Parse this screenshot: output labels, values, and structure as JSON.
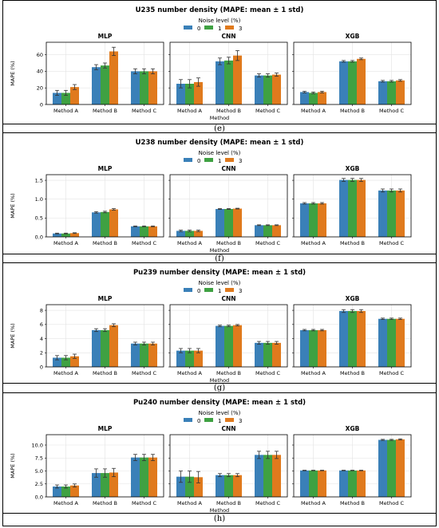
{
  "colors": {
    "noise_0": "#3a80b8",
    "noise_1": "#3fa142",
    "noise_3": "#e07a1d"
  },
  "legend": {
    "title": "Noise level (%)",
    "entries": [
      "0",
      "1",
      "3"
    ]
  },
  "figures": [
    {
      "caption": "(e)",
      "title": "U235 number density (MAPE: mean ± 1 std)",
      "ylabel": "MAPE (%)",
      "xlabel": "Method",
      "categories": [
        "Method A",
        "Method B",
        "Method C"
      ],
      "ylim": [
        0,
        75
      ],
      "yticks": [
        "0",
        "20",
        "40",
        "60"
      ],
      "ytick_values": [
        0,
        20,
        40,
        60
      ],
      "panels": [
        {
          "name": "MLP",
          "series": [
            {
              "name": "0",
              "values": [
                14,
                45,
                40
              ],
              "err": [
                3,
                3,
                3
              ]
            },
            {
              "name": "1",
              "values": [
                14,
                47,
                40
              ],
              "err": [
                3,
                3,
                3
              ]
            },
            {
              "name": "3",
              "values": [
                21,
                64,
                40
              ],
              "err": [
                3,
                5,
                3
              ]
            }
          ]
        },
        {
          "name": "CNN",
          "series": [
            {
              "name": "0",
              "values": [
                25,
                52,
                35
              ],
              "err": [
                5,
                4,
                2
              ]
            },
            {
              "name": "1",
              "values": [
                25,
                53,
                35
              ],
              "err": [
                5,
                4,
                2
              ]
            },
            {
              "name": "3",
              "values": [
                27,
                59,
                36
              ],
              "err": [
                5,
                6,
                2
              ]
            }
          ]
        },
        {
          "name": "XGB",
          "series": [
            {
              "name": "0",
              "values": [
                15,
                52,
                28
              ],
              "err": [
                1,
                1,
                1
              ]
            },
            {
              "name": "1",
              "values": [
                14,
                52,
                28
              ],
              "err": [
                1,
                1,
                1
              ]
            },
            {
              "name": "3",
              "values": [
                15,
                55,
                29
              ],
              "err": [
                1,
                1,
                1
              ]
            }
          ]
        }
      ]
    },
    {
      "caption": "(f)",
      "title": "U238 number density (MAPE: mean ± 1 std)",
      "ylabel": "MAPE (%)",
      "xlabel": "Method",
      "categories": [
        "Method A",
        "Method B",
        "Method C"
      ],
      "ylim": [
        0,
        1.65
      ],
      "yticks": [
        "0.0",
        "0.5",
        "1.0",
        "1.5"
      ],
      "ytick_values": [
        0,
        0.5,
        1.0,
        1.5
      ],
      "panels": [
        {
          "name": "MLP",
          "series": [
            {
              "name": "0",
              "values": [
                0.09,
                0.65,
                0.28
              ],
              "err": [
                0.01,
                0.02,
                0.01
              ]
            },
            {
              "name": "1",
              "values": [
                0.09,
                0.66,
                0.28
              ],
              "err": [
                0.01,
                0.02,
                0.01
              ]
            },
            {
              "name": "3",
              "values": [
                0.1,
                0.73,
                0.28
              ],
              "err": [
                0.01,
                0.02,
                0.01
              ]
            }
          ]
        },
        {
          "name": "CNN",
          "series": [
            {
              "name": "0",
              "values": [
                0.16,
                0.74,
                0.31
              ],
              "err": [
                0.02,
                0.01,
                0.01
              ]
            },
            {
              "name": "1",
              "values": [
                0.16,
                0.74,
                0.31
              ],
              "err": [
                0.02,
                0.01,
                0.01
              ]
            },
            {
              "name": "3",
              "values": [
                0.16,
                0.75,
                0.31
              ],
              "err": [
                0.02,
                0.01,
                0.01
              ]
            }
          ]
        },
        {
          "name": "XGB",
          "series": [
            {
              "name": "0",
              "values": [
                0.89,
                1.51,
                1.23
              ],
              "err": [
                0.02,
                0.04,
                0.04
              ]
            },
            {
              "name": "1",
              "values": [
                0.89,
                1.51,
                1.23
              ],
              "err": [
                0.02,
                0.04,
                0.04
              ]
            },
            {
              "name": "3",
              "values": [
                0.89,
                1.51,
                1.23
              ],
              "err": [
                0.02,
                0.04,
                0.04
              ]
            }
          ]
        }
      ]
    },
    {
      "caption": "(g)",
      "title": "Pu239 number density (MAPE: mean ± 1 std)",
      "ylabel": "MAPE (%)",
      "xlabel": "Method",
      "categories": [
        "Method A",
        "Method B",
        "Method C"
      ],
      "ylim": [
        0,
        8.8
      ],
      "yticks": [
        "0",
        "2",
        "4",
        "6",
        "8"
      ],
      "ytick_values": [
        0,
        2,
        4,
        6,
        8
      ],
      "panels": [
        {
          "name": "MLP",
          "series": [
            {
              "name": "0",
              "values": [
                1.3,
                5.2,
                3.3
              ],
              "err": [
                0.3,
                0.2,
                0.2
              ]
            },
            {
              "name": "1",
              "values": [
                1.3,
                5.2,
                3.3
              ],
              "err": [
                0.3,
                0.2,
                0.2
              ]
            },
            {
              "name": "3",
              "values": [
                1.5,
                5.9,
                3.3
              ],
              "err": [
                0.3,
                0.2,
                0.2
              ]
            }
          ]
        },
        {
          "name": "CNN",
          "series": [
            {
              "name": "0",
              "values": [
                2.3,
                5.8,
                3.4
              ],
              "err": [
                0.3,
                0.1,
                0.2
              ]
            },
            {
              "name": "1",
              "values": [
                2.3,
                5.8,
                3.4
              ],
              "err": [
                0.3,
                0.1,
                0.2
              ]
            },
            {
              "name": "3",
              "values": [
                2.3,
                5.9,
                3.4
              ],
              "err": [
                0.3,
                0.1,
                0.2
              ]
            }
          ]
        },
        {
          "name": "XGB",
          "series": [
            {
              "name": "0",
              "values": [
                5.2,
                7.9,
                6.8
              ],
              "err": [
                0.1,
                0.2,
                0.1
              ]
            },
            {
              "name": "1",
              "values": [
                5.2,
                7.9,
                6.8
              ],
              "err": [
                0.1,
                0.2,
                0.1
              ]
            },
            {
              "name": "3",
              "values": [
                5.2,
                7.9,
                6.8
              ],
              "err": [
                0.1,
                0.2,
                0.1
              ]
            }
          ]
        }
      ]
    },
    {
      "caption": "(h)",
      "title": "Pu240 number density (MAPE: mean ± 1 std)",
      "ylabel": "MAPE (%)",
      "xlabel": "Method",
      "categories": [
        "Method A",
        "Method B",
        "Method C"
      ],
      "ylim": [
        0,
        12
      ],
      "yticks": [
        "0.0",
        "2.5",
        "5.0",
        "7.5",
        "10.0"
      ],
      "ytick_values": [
        0,
        2.5,
        5,
        7.5,
        10
      ],
      "panels": [
        {
          "name": "MLP",
          "series": [
            {
              "name": "0",
              "values": [
                2.0,
                4.6,
                7.6
              ],
              "err": [
                0.3,
                0.8,
                0.6
              ]
            },
            {
              "name": "1",
              "values": [
                2.0,
                4.6,
                7.6
              ],
              "err": [
                0.3,
                0.8,
                0.6
              ]
            },
            {
              "name": "3",
              "values": [
                2.2,
                4.7,
                7.6
              ],
              "err": [
                0.3,
                0.8,
                0.6
              ]
            }
          ]
        },
        {
          "name": "CNN",
          "series": [
            {
              "name": "0",
              "values": [
                3.9,
                4.2,
                8.1
              ],
              "err": [
                1.1,
                0.3,
                0.7
              ]
            },
            {
              "name": "1",
              "values": [
                3.9,
                4.2,
                8.1
              ],
              "err": [
                1.1,
                0.3,
                0.7
              ]
            },
            {
              "name": "3",
              "values": [
                3.8,
                4.2,
                8.1
              ],
              "err": [
                1.1,
                0.3,
                0.7
              ]
            }
          ]
        },
        {
          "name": "XGB",
          "series": [
            {
              "name": "0",
              "values": [
                5.1,
                5.1,
                11.0
              ],
              "err": [
                0.05,
                0.05,
                0.1
              ]
            },
            {
              "name": "1",
              "values": [
                5.1,
                5.1,
                11.0
              ],
              "err": [
                0.05,
                0.05,
                0.1
              ]
            },
            {
              "name": "3",
              "values": [
                5.1,
                5.1,
                11.1
              ],
              "err": [
                0.05,
                0.05,
                0.1
              ]
            }
          ]
        }
      ]
    }
  ],
  "chart_data": [
    {
      "type": "bar",
      "title": "U235 number density (MAPE: mean ± 1 std)",
      "categories": [
        "Method A",
        "Method B",
        "Method C"
      ],
      "xlabel": "Method",
      "ylabel": "MAPE (%)",
      "ylim": [
        0,
        75
      ],
      "grid": true,
      "legend": "top-center"
    },
    {
      "type": "bar",
      "title": "U238 number density (MAPE: mean ± 1 std)",
      "categories": [
        "Method A",
        "Method B",
        "Method C"
      ],
      "xlabel": "Method",
      "ylabel": "MAPE (%)",
      "ylim": [
        0,
        1.65
      ],
      "grid": true,
      "legend": "top-center"
    },
    {
      "type": "bar",
      "title": "Pu239 number density (MAPE: mean ± 1 std)",
      "categories": [
        "Method A",
        "Method B",
        "Method C"
      ],
      "xlabel": "Method",
      "ylabel": "MAPE (%)",
      "ylim": [
        0,
        8.8
      ],
      "grid": true,
      "legend": "top-center"
    },
    {
      "type": "bar",
      "title": "Pu240 number density (MAPE: mean ± 1 std)",
      "categories": [
        "Method A",
        "Method B",
        "Method C"
      ],
      "xlabel": "Method",
      "ylabel": "MAPE (%)",
      "ylim": [
        0,
        12
      ],
      "grid": true,
      "legend": "top-center"
    }
  ]
}
